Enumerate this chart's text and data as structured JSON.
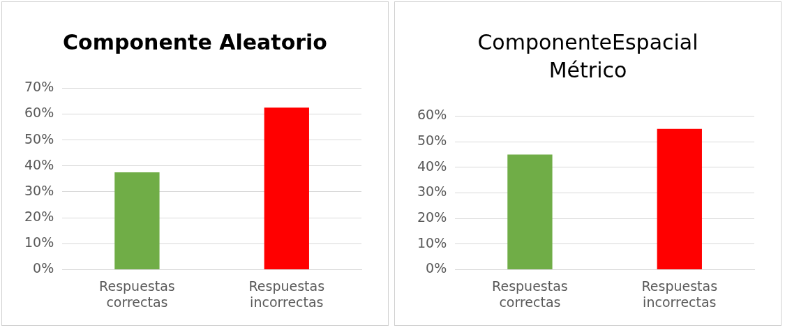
{
  "chart_data": [
    {
      "type": "bar",
      "title": "Componente Aleatorio",
      "categories": [
        "Respuestas correctas",
        "Respuestas incorrectas"
      ],
      "values": [
        37.5,
        62.5
      ],
      "colors": [
        "#70ad47",
        "#ff0000"
      ],
      "ylim": [
        0,
        70
      ],
      "yticks": [
        {
          "value": 0,
          "label": "0%"
        },
        {
          "value": 10,
          "label": "10%"
        },
        {
          "value": 20,
          "label": "20%"
        },
        {
          "value": 30,
          "label": "30%"
        },
        {
          "value": 40,
          "label": "40%"
        },
        {
          "value": 50,
          "label": "50%"
        },
        {
          "value": 60,
          "label": "60%"
        },
        {
          "value": 70,
          "label": "70%"
        }
      ],
      "grid": "y"
    },
    {
      "type": "bar",
      "title": "ComponenteEspacial Métrico",
      "categories": [
        "Respuestas correctas",
        "Respuestas incorrectas"
      ],
      "values": [
        45,
        55
      ],
      "colors": [
        "#70ad47",
        "#ff0000"
      ],
      "ylim": [
        0,
        60
      ],
      "yticks": [
        {
          "value": 0,
          "label": "0%"
        },
        {
          "value": 10,
          "label": "10%"
        },
        {
          "value": 20,
          "label": "20%"
        },
        {
          "value": 30,
          "label": "30%"
        },
        {
          "value": 40,
          "label": "40%"
        },
        {
          "value": 50,
          "label": "50%"
        },
        {
          "value": 60,
          "label": "60%"
        }
      ],
      "grid": "y"
    }
  ]
}
